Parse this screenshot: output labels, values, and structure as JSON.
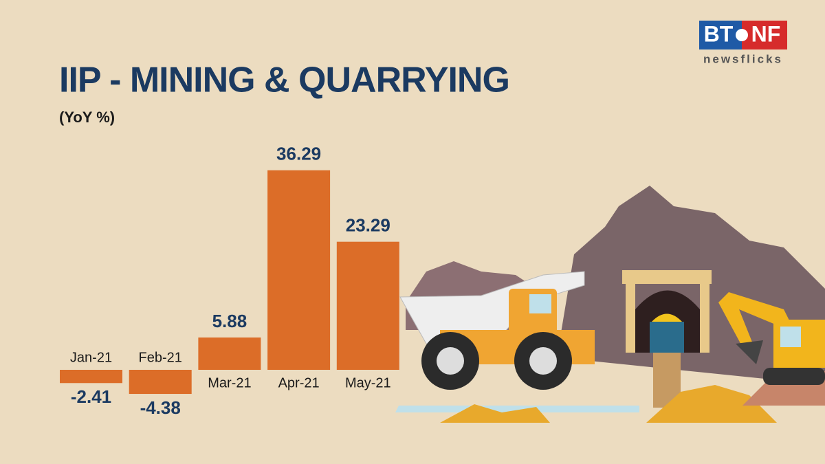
{
  "brand": {
    "left": "BT",
    "right": "NF",
    "tagline": "newsflicks"
  },
  "chart_data": {
    "type": "bar",
    "title": "IIP - MINING & QUARRYING",
    "subtitle": "(YoY %)",
    "categories": [
      "Jan-21",
      "Feb-21",
      "Mar-21",
      "Apr-21",
      "May-21"
    ],
    "values": [
      -2.41,
      -4.38,
      5.88,
      36.29,
      23.29
    ],
    "color": "#dc6d28"
  }
}
